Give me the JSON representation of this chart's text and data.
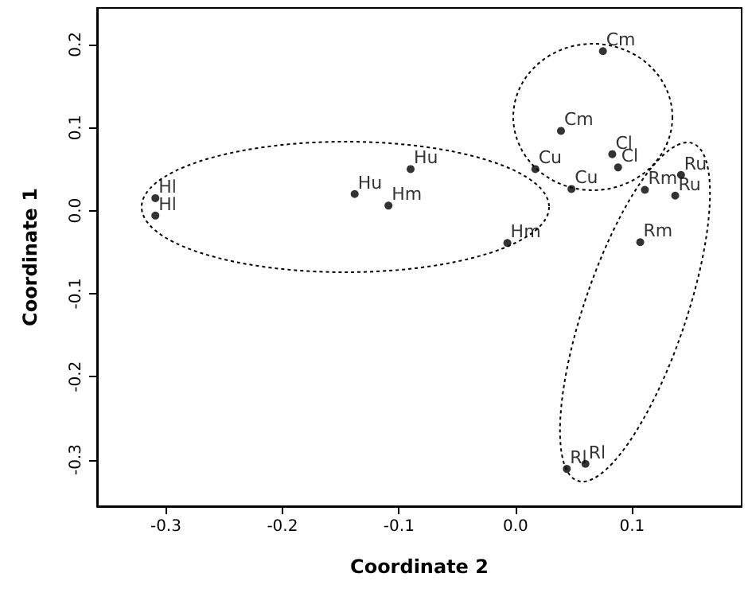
{
  "chart_data": {
    "type": "scatter",
    "xlabel": "Coordinate 2",
    "ylabel": "Coordinate 1",
    "x": [
      0.075,
      0.039,
      0.083,
      0.088,
      0.017,
      0.048,
      0.111,
      0.142,
      0.137,
      0.107,
      -0.09,
      -0.138,
      -0.109,
      -0.007,
      -0.309,
      -0.309,
      0.044,
      0.06
    ],
    "values": [
      0.192,
      0.096,
      0.068,
      0.052,
      0.05,
      0.026,
      0.025,
      0.043,
      0.018,
      -0.038,
      0.05,
      0.02,
      0.006,
      -0.039,
      0.015,
      -0.006,
      -0.311,
      -0.305
    ],
    "color": "#000000",
    "marker": "circle",
    "grid": false,
    "xlim": [
      -0.359,
      0.194
    ],
    "ylim": [
      -0.356,
      0.244
    ],
    "xticks": [
      -0.3,
      -0.2,
      -0.1,
      {
        "value": 0,
        "label": "0.0"
      },
      0.1
    ],
    "yticks": [
      -0.3,
      -0.2,
      -0.1,
      {
        "value": 0,
        "label": "0.0"
      },
      0.1,
      0.2
    ],
    "annotations": [
      {
        "text": "Cm",
        "x": 0.075,
        "y": 0.192
      },
      {
        "text": "Cm",
        "x": 0.039,
        "y": 0.096
      },
      {
        "text": "Cl",
        "x": 0.083,
        "y": 0.068
      },
      {
        "text": "Cl",
        "x": 0.088,
        "y": 0.052
      },
      {
        "text": "Cu",
        "x": 0.017,
        "y": 0.05
      },
      {
        "text": "Cu",
        "x": 0.048,
        "y": 0.026
      },
      {
        "text": "Rm",
        "x": 0.111,
        "y": 0.025
      },
      {
        "text": "Ru",
        "x": 0.142,
        "y": 0.043
      },
      {
        "text": "Ru",
        "x": 0.137,
        "y": 0.018
      },
      {
        "text": "Rm",
        "x": 0.107,
        "y": -0.038
      },
      {
        "text": "Hu",
        "x": -0.09,
        "y": 0.05
      },
      {
        "text": "Hu",
        "x": -0.138,
        "y": 0.02
      },
      {
        "text": "Hm",
        "x": -0.109,
        "y": 0.006
      },
      {
        "text": "Hm",
        "x": -0.007,
        "y": -0.039
      },
      {
        "text": "Hl",
        "x": -0.309,
        "y": 0.015
      },
      {
        "text": "Hl",
        "x": -0.309,
        "y": -0.006
      },
      {
        "text": "Rl",
        "x": 0.044,
        "y": -0.311
      },
      {
        "text": "Rl",
        "x": 0.06,
        "y": -0.305
      }
    ]
  }
}
